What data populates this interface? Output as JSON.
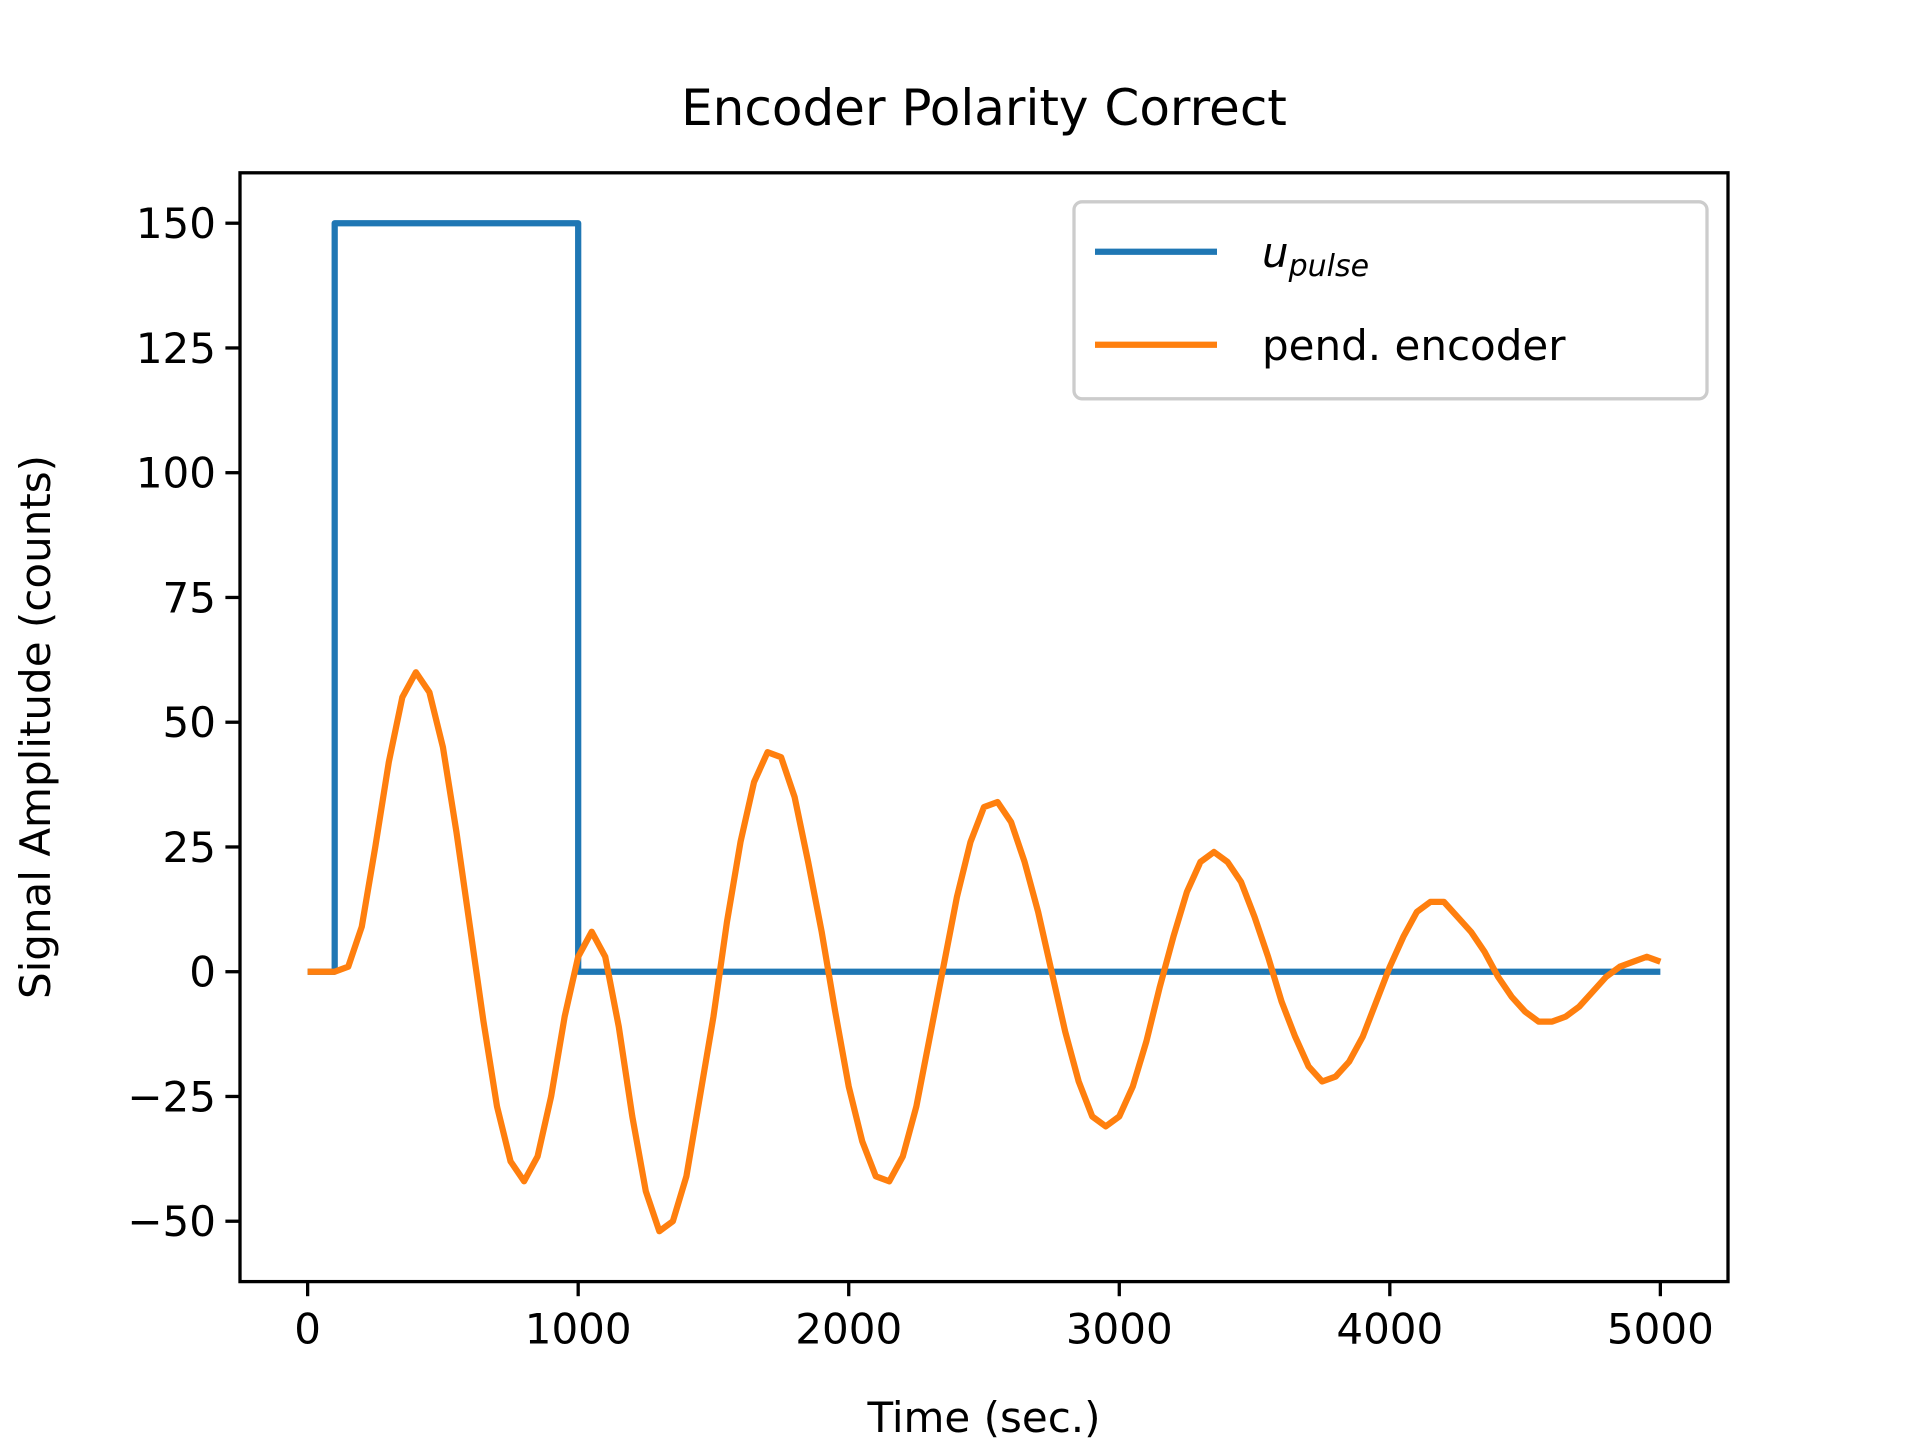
{
  "chart_data": {
    "type": "line",
    "title": "Encoder Polarity Correct",
    "x_label": "Time (sec.)",
    "y_label": "Signal Amplitude (counts)",
    "xlim": [
      -250,
      5250
    ],
    "xticks": [
      0,
      1000,
      2000,
      3000,
      4000,
      5000
    ],
    "ylim": [
      -62.1,
      160.1
    ],
    "yticks": [
      {
        "value": -50,
        "label": "−50"
      },
      {
        "value": -25,
        "label": "−25"
      },
      0,
      25,
      50,
      75,
      100,
      125,
      150
    ],
    "legend": "upper right",
    "series": [
      {
        "name": "u_pulse",
        "color": "#1f77b4",
        "x": [
          0,
          100,
          100,
          1000,
          1000,
          5000
        ],
        "values": [
          0,
          0,
          150,
          150,
          0,
          0
        ]
      },
      {
        "name": "pend. encoder",
        "color": "#ff7f0e",
        "x": [
          0,
          50,
          100,
          150,
          200,
          250,
          300,
          350,
          400,
          450,
          500,
          550,
          600,
          650,
          700,
          750,
          800,
          850,
          900,
          950,
          1000,
          1050,
          1100,
          1150,
          1200,
          1250,
          1300,
          1350,
          1400,
          1450,
          1500,
          1550,
          1600,
          1650,
          1700,
          1750,
          1800,
          1850,
          1900,
          1950,
          2000,
          2050,
          2100,
          2150,
          2200,
          2250,
          2300,
          2350,
          2400,
          2450,
          2500,
          2550,
          2600,
          2650,
          2700,
          2750,
          2800,
          2850,
          2900,
          2950,
          3000,
          3050,
          3100,
          3150,
          3200,
          3250,
          3300,
          3350,
          3400,
          3450,
          3500,
          3550,
          3600,
          3650,
          3700,
          3750,
          3800,
          3850,
          3900,
          3950,
          4000,
          4050,
          4100,
          4150,
          4200,
          4250,
          4300,
          4350,
          4400,
          4450,
          4500,
          4550,
          4600,
          4650,
          4700,
          4750,
          4800,
          4850,
          4900,
          4950,
          5000
        ],
        "values": [
          0,
          0,
          0,
          1,
          9,
          25,
          42,
          55,
          60,
          56,
          45,
          28,
          9,
          -10,
          -27,
          -38,
          -42,
          -37,
          -25,
          -9,
          3,
          8,
          3,
          -11,
          -29,
          -44,
          -52,
          -50,
          -41,
          -25,
          -9,
          10,
          26,
          38,
          44,
          43,
          35,
          22,
          8,
          -8,
          -23,
          -34,
          -41,
          -42,
          -37,
          -27,
          -13,
          1,
          15,
          26,
          33,
          34,
          30,
          22,
          12,
          0,
          -12,
          -22,
          -29,
          -31,
          -29,
          -23,
          -14,
          -3,
          7,
          16,
          22,
          24,
          22,
          18,
          11,
          3,
          -6,
          -13,
          -19,
          -22,
          -21,
          -18,
          -13,
          -6,
          1,
          7,
          12,
          14,
          14,
          11,
          8,
          4,
          -1,
          -5,
          -8,
          -10,
          -10,
          -9,
          -7,
          -4,
          -1,
          1,
          2,
          3,
          2
        ]
      }
    ]
  }
}
